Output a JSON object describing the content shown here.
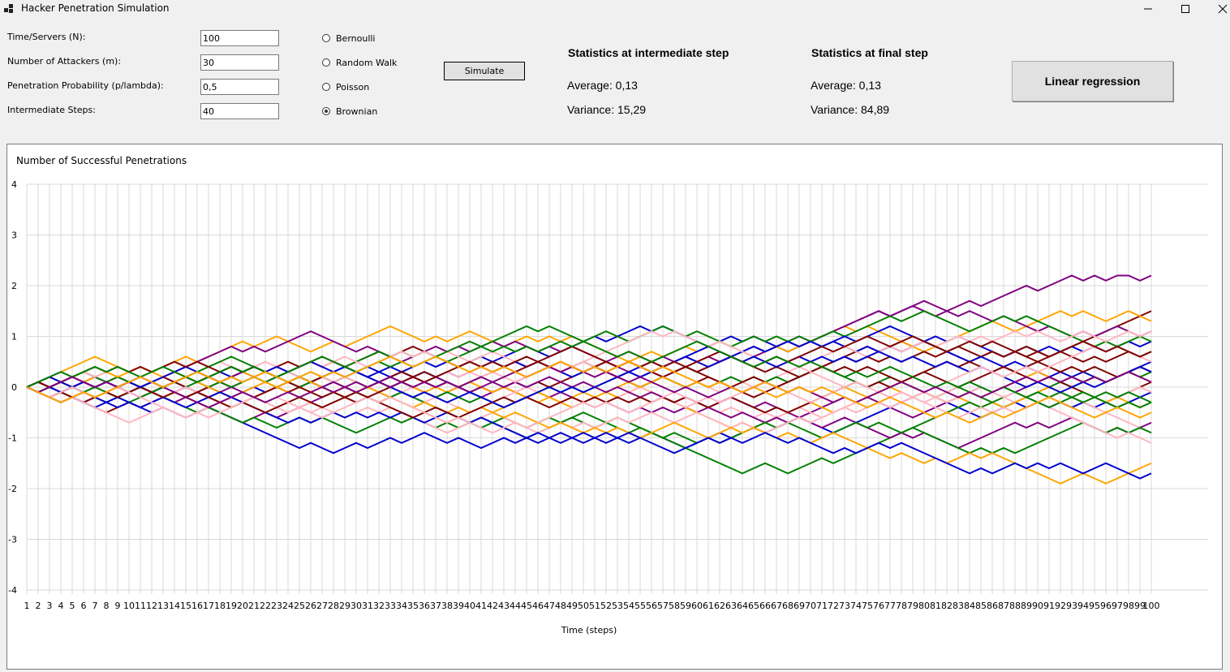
{
  "window": {
    "title": "Hacker Penetration Simulation"
  },
  "form": {
    "fields": [
      {
        "label": "Time/Servers (N):",
        "value": "100"
      },
      {
        "label": "Number of Attackers (m):",
        "value": "30"
      },
      {
        "label": "Penetration Probability (p/lambda):",
        "value": "0,5"
      },
      {
        "label": "Intermediate Steps:",
        "value": "40"
      }
    ],
    "radios": [
      {
        "label": "Bernoulli",
        "checked": false
      },
      {
        "label": "Random Walk",
        "checked": false
      },
      {
        "label": "Poisson",
        "checked": false
      },
      {
        "label": "Brownian",
        "checked": true
      }
    ],
    "simulate_label": "Simulate"
  },
  "stats": {
    "intermediate": {
      "title": "Statistics at intermediate step",
      "average": "Average: 0,13",
      "variance": "Variance: 15,29"
    },
    "final": {
      "title": "Statistics at final step",
      "average": "Average: 0,13",
      "variance": "Variance: 84,89"
    }
  },
  "linear_regression_label": "Linear regression",
  "chart_data": {
    "type": "line",
    "title": "Number of Successful Penetrations",
    "xlabel": "Time (steps)",
    "ylabel": "Number of Successful Penetrations",
    "ylim": [
      -4,
      4
    ],
    "yticks": [
      4,
      3,
      2,
      1,
      0,
      -1,
      -2,
      -3,
      -4
    ],
    "x_tick_labels": [
      "1",
      "2",
      "3",
      "4",
      "5",
      "6",
      "7",
      "8",
      "9",
      "10",
      "11",
      "12",
      "13",
      "14",
      "15",
      "16",
      "17",
      "18",
      "19",
      "20",
      "21",
      "22",
      "23",
      "24",
      "25",
      "26",
      "27",
      "28",
      "29",
      "30",
      "31",
      "32",
      "33",
      "34",
      "35",
      "36",
      "37",
      "38",
      "39",
      "40",
      "41",
      "42",
      "43",
      "44",
      "45",
      "46",
      "47",
      "48",
      "49",
      "50",
      "51",
      "52",
      "53",
      "54",
      "55",
      "56",
      "57",
      "58",
      "59",
      "60",
      "61",
      "62",
      "63",
      "64",
      "65",
      "66",
      "67",
      "68",
      "69",
      "70",
      "71",
      "72",
      "73",
      "74",
      "75",
      "76",
      "77",
      "78",
      "79",
      "80",
      "81",
      "82",
      "83",
      "84",
      "85",
      "86",
      "87",
      "88",
      "89",
      "90",
      "91",
      "92",
      "93",
      "94",
      "95",
      "96",
      "97",
      "98",
      "99",
      "100"
    ],
    "grid": true,
    "legend": "none",
    "step_size": 0.1,
    "series": [
      {
        "color": "#800080",
        "final": 2.2
      },
      {
        "color": "#800000",
        "final": 1.4
      },
      {
        "color": "#0000cd",
        "final": 0.9
      },
      {
        "color": "#ffa500",
        "final": 1.2
      },
      {
        "color": "#800080",
        "final": 1.0
      },
      {
        "color": "#008000",
        "final": 0.8
      },
      {
        "color": "#ffb6c1",
        "final": 1.1
      },
      {
        "color": "#800000",
        "final": 0.6
      },
      {
        "color": "#0000cd",
        "final": 0.4
      },
      {
        "color": "#800080",
        "final": 0.3
      },
      {
        "color": "#ffa500",
        "final": 0.1
      },
      {
        "color": "#008000",
        "final": 0.2
      },
      {
        "color": "#800000",
        "final": 0.0
      },
      {
        "color": "#0000cd",
        "final": -0.1
      },
      {
        "color": "#ffb6c1",
        "final": -0.2
      },
      {
        "color": "#ffa500",
        "final": -0.4
      },
      {
        "color": "#008000",
        "final": -0.4
      },
      {
        "color": "#800080",
        "final": -0.8
      },
      {
        "color": "#ffb6c1",
        "final": -0.9
      },
      {
        "color": "#008000",
        "final": -1.0
      },
      {
        "color": "#ffb6c1",
        "final": -1.2
      },
      {
        "color": "#ffa500",
        "final": -1.6
      },
      {
        "color": "#0000cd",
        "final": -1.7
      },
      {
        "color": "#800000",
        "final": 0.2
      },
      {
        "color": "#0000cd",
        "final": 0.2
      },
      {
        "color": "#ffb6c1",
        "final": 0.5
      },
      {
        "color": "#800000",
        "final": 0.7
      },
      {
        "color": "#008000",
        "final": -0.3
      },
      {
        "color": "#800080",
        "final": 0.0
      },
      {
        "color": "#ffa500",
        "final": -0.6
      }
    ]
  }
}
